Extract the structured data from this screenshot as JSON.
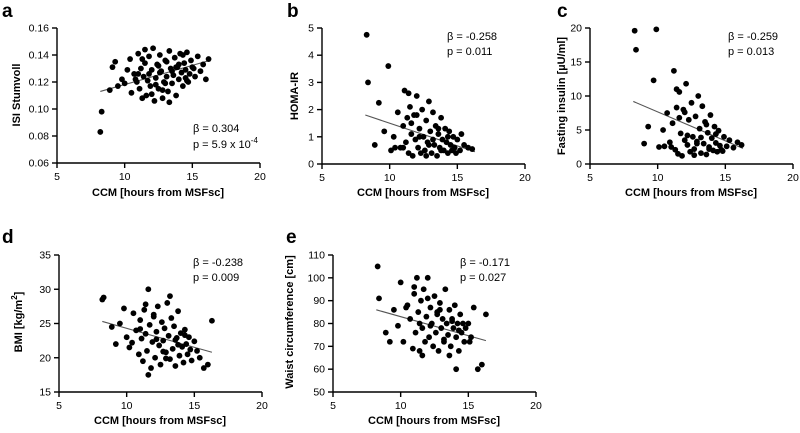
{
  "chart_data": [
    {
      "id": "a",
      "type": "scatter",
      "panel_letter": "a",
      "xlabel": "CCM [hours from MSFsc]",
      "ylabel": "ISI Stumvoll",
      "xlim": [
        5,
        20
      ],
      "ylim": [
        0.06,
        0.16
      ],
      "xticks": [
        5,
        10,
        15,
        20
      ],
      "xtick_labels": [
        "5",
        "10",
        "15",
        "20"
      ],
      "yticks": [
        0.06,
        0.08,
        0.1,
        0.12,
        0.14,
        0.16
      ],
      "ytick_labels": [
        "0.06",
        "0.08",
        "0.10",
        "0.12",
        "0.14",
        "0.16"
      ],
      "annotation_lines": [
        "β = 0.304",
        "p = 5.9 x 10"
      ],
      "annotation_superscript": "-4",
      "annotation_position": "bottom-right",
      "fit": {
        "x": [
          8.2,
          16.3
        ],
        "y": [
          0.113,
          0.136
        ]
      },
      "x": [
        8.2,
        8.3,
        8.9,
        9.1,
        9.3,
        9.5,
        9.8,
        10.0,
        10.2,
        10.4,
        10.5,
        10.7,
        10.9,
        11.0,
        11.1,
        11.2,
        11.3,
        11.4,
        11.5,
        11.6,
        11.7,
        11.8,
        11.9,
        12.0,
        12.1,
        12.2,
        12.3,
        12.4,
        12.5,
        12.6,
        12.7,
        12.8,
        12.9,
        13.0,
        13.1,
        13.2,
        13.3,
        13.4,
        13.5,
        13.6,
        13.7,
        13.8,
        13.9,
        14.0,
        14.1,
        14.2,
        14.3,
        14.4,
        14.5,
        14.6,
        14.7,
        14.8,
        14.9,
        15.0,
        15.2,
        15.4,
        15.6,
        15.8,
        16.0,
        16.2,
        11.0,
        11.5,
        12.0,
        12.5,
        13.0,
        13.5,
        14.0,
        14.5,
        11.3,
        12.3,
        13.3,
        14.3,
        11.8,
        12.8,
        13.8,
        10.8,
        12.6,
        13.1,
        14.6,
        15.1
      ],
      "y": [
        0.083,
        0.098,
        0.114,
        0.131,
        0.135,
        0.117,
        0.122,
        0.119,
        0.129,
        0.137,
        0.112,
        0.126,
        0.12,
        0.141,
        0.115,
        0.13,
        0.108,
        0.124,
        0.134,
        0.11,
        0.121,
        0.139,
        0.117,
        0.129,
        0.145,
        0.106,
        0.123,
        0.133,
        0.115,
        0.14,
        0.128,
        0.108,
        0.12,
        0.136,
        0.124,
        0.113,
        0.143,
        0.13,
        0.119,
        0.125,
        0.138,
        0.11,
        0.131,
        0.122,
        0.141,
        0.127,
        0.117,
        0.134,
        0.129,
        0.142,
        0.12,
        0.126,
        0.136,
        0.131,
        0.124,
        0.139,
        0.128,
        0.133,
        0.122,
        0.137,
        0.126,
        0.144,
        0.111,
        0.132,
        0.119,
        0.128,
        0.133,
        0.123,
        0.137,
        0.118,
        0.105,
        0.14,
        0.126,
        0.114,
        0.131,
        0.122,
        0.127,
        0.135,
        0.121,
        0.13
      ]
    },
    {
      "id": "b",
      "type": "scatter",
      "panel_letter": "b",
      "xlabel": "CCM [hours from MSFsc]",
      "ylabel": "HOMA-IR",
      "xlim": [
        5,
        20
      ],
      "ylim": [
        0,
        5
      ],
      "xticks": [
        5,
        10,
        15,
        20
      ],
      "xtick_labels": [
        "5",
        "10",
        "15",
        "20"
      ],
      "yticks": [
        0,
        1,
        2,
        3,
        4,
        5
      ],
      "ytick_labels": [
        "0",
        "1",
        "2",
        "3",
        "4",
        "5"
      ],
      "annotation_lines": [
        "β = -0.258",
        "p = 0.011"
      ],
      "annotation_superscript": "",
      "annotation_position": "top-right",
      "fit": {
        "x": [
          8.2,
          16.3
        ],
        "y": [
          1.8,
          0.45
        ]
      },
      "x": [
        8.3,
        8.4,
        8.9,
        9.2,
        9.6,
        9.9,
        10.1,
        10.3,
        10.6,
        10.8,
        11.0,
        11.1,
        11.2,
        11.3,
        11.4,
        11.5,
        11.6,
        11.7,
        11.8,
        11.9,
        12.0,
        12.1,
        12.2,
        12.3,
        12.4,
        12.5,
        12.6,
        12.7,
        12.8,
        12.9,
        13.0,
        13.1,
        13.2,
        13.3,
        13.4,
        13.5,
        13.6,
        13.7,
        13.8,
        13.9,
        14.0,
        14.1,
        14.2,
        14.3,
        14.4,
        14.5,
        14.6,
        14.7,
        14.8,
        15.0,
        15.2,
        15.5,
        15.8,
        16.1,
        11.0,
        11.6,
        12.2,
        12.7,
        13.2,
        13.8,
        14.3,
        12.0,
        12.9,
        13.6,
        11.4,
        14.9,
        10.4,
        15.3
      ],
      "y": [
        4.75,
        3.0,
        0.7,
        2.25,
        1.2,
        3.6,
        0.5,
        1.0,
        1.9,
        0.6,
        1.4,
        2.7,
        0.8,
        1.7,
        0.4,
        2.1,
        1.1,
        0.3,
        1.8,
        0.9,
        2.5,
        0.6,
        1.3,
        0.4,
        2.0,
        1.0,
        0.5,
        1.6,
        0.8,
        2.3,
        1.2,
        0.4,
        1.9,
        0.7,
        1.4,
        0.3,
        1.1,
        0.6,
        1.7,
        0.9,
        0.5,
        1.3,
        0.8,
        0.4,
        1.2,
        0.7,
        0.5,
        1.0,
        0.6,
        0.9,
        0.5,
        0.7,
        0.6,
        0.55,
        0.6,
        1.5,
        1.0,
        0.3,
        0.9,
        0.5,
        1.0,
        1.8,
        0.7,
        1.3,
        2.6,
        0.4,
        0.6,
        1.1
      ]
    },
    {
      "id": "c",
      "type": "scatter",
      "panel_letter": "c",
      "xlabel": "CCM [hours from MSFsc]",
      "ylabel": "Fasting insulin [µU/ml]",
      "xlim": [
        5,
        20
      ],
      "ylim": [
        0,
        20
      ],
      "xticks": [
        5,
        10,
        15,
        20
      ],
      "xtick_labels": [
        "5",
        "10",
        "15",
        "20"
      ],
      "yticks": [
        0,
        5,
        10,
        15,
        20
      ],
      "ytick_labels": [
        "0",
        "5",
        "10",
        "15",
        "20"
      ],
      "annotation_lines": [
        "β = -0.259",
        "p = 0.013"
      ],
      "annotation_superscript": "",
      "annotation_position": "top-right",
      "fit": {
        "x": [
          8.2,
          16.3
        ],
        "y": [
          9.2,
          2.3
        ]
      },
      "x": [
        8.3,
        8.4,
        9.0,
        9.3,
        9.7,
        9.9,
        10.1,
        10.4,
        10.7,
        10.9,
        11.1,
        11.2,
        11.3,
        11.4,
        11.5,
        11.6,
        11.7,
        11.8,
        11.9,
        12.0,
        12.1,
        12.2,
        12.3,
        12.4,
        12.5,
        12.6,
        12.7,
        12.8,
        12.9,
        13.0,
        13.1,
        13.2,
        13.3,
        13.4,
        13.5,
        13.6,
        13.7,
        13.8,
        13.9,
        14.0,
        14.1,
        14.2,
        14.3,
        14.4,
        14.5,
        14.6,
        14.7,
        14.9,
        15.1,
        15.3,
        15.6,
        15.9,
        16.2,
        11.0,
        11.6,
        12.2,
        12.7,
        13.2,
        13.8,
        14.3,
        12.0,
        12.9,
        13.6,
        11.4,
        10.5,
        14.8
      ],
      "y": [
        19.6,
        16.8,
        3.0,
        5.5,
        12.3,
        19.8,
        2.5,
        5.0,
        7.5,
        3.2,
        6.0,
        13.7,
        2.1,
        8.3,
        1.5,
        10.6,
        4.5,
        1.2,
        8.0,
        3.5,
        11.8,
        2.8,
        6.5,
        1.8,
        9.0,
        4.0,
        2.2,
        7.0,
        3.3,
        10.0,
        5.2,
        1.6,
        8.5,
        3.0,
        6.2,
        1.4,
        4.6,
        2.5,
        7.2,
        3.8,
        2.0,
        5.5,
        3.1,
        1.8,
        4.9,
        2.7,
        2.1,
        4.0,
        2.6,
        3.5,
        2.4,
        3.2,
        2.8,
        2.5,
        6.8,
        4.2,
        1.3,
        3.9,
        2.2,
        4.4,
        7.6,
        3.0,
        5.8,
        11.0,
        2.6,
        1.9
      ]
    },
    {
      "id": "d",
      "type": "scatter",
      "panel_letter": "d",
      "xlabel": "CCM [hours from MSFsc]",
      "ylabel": "BMI [kg/m",
      "ylabel_superscript": "2",
      "ylabel_suffix": "]",
      "xlim": [
        5,
        20
      ],
      "ylim": [
        15,
        35
      ],
      "xticks": [
        5,
        10,
        15,
        20
      ],
      "xtick_labels": [
        "5",
        "10",
        "15",
        "20"
      ],
      "yticks": [
        15,
        20,
        25,
        30,
        35
      ],
      "ytick_labels": [
        "15",
        "20",
        "25",
        "30",
        "35"
      ],
      "annotation_lines": [
        "β = -0.238",
        "p = 0.009"
      ],
      "annotation_superscript": "",
      "annotation_position": "top-right",
      "fit": {
        "x": [
          8.2,
          16.3
        ],
        "y": [
          25.3,
          20.8
        ]
      },
      "x": [
        8.2,
        8.3,
        8.9,
        9.2,
        9.5,
        9.8,
        10.0,
        10.2,
        10.5,
        10.7,
        10.9,
        11.0,
        11.1,
        11.2,
        11.3,
        11.4,
        11.5,
        11.6,
        11.7,
        11.8,
        11.9,
        12.0,
        12.1,
        12.2,
        12.3,
        12.4,
        12.5,
        12.6,
        12.7,
        12.8,
        12.9,
        13.0,
        13.1,
        13.2,
        13.3,
        13.4,
        13.5,
        13.6,
        13.7,
        13.8,
        13.9,
        14.0,
        14.1,
        14.2,
        14.3,
        14.4,
        14.5,
        14.6,
        14.7,
        14.8,
        15.0,
        15.2,
        15.4,
        15.7,
        16.0,
        16.3,
        11.0,
        11.6,
        12.2,
        12.7,
        13.2,
        13.8,
        14.3,
        12.0,
        12.9,
        13.6,
        11.4,
        10.4
      ],
      "y": [
        28.5,
        28.8,
        24.5,
        22.0,
        25.0,
        27.2,
        23.0,
        21.5,
        26.5,
        24.0,
        20.5,
        25.5,
        22.8,
        19.5,
        27.0,
        23.5,
        21.0,
        30.0,
        24.8,
        18.5,
        22.3,
        26.0,
        20.0,
        23.8,
        27.5,
        21.8,
        19.0,
        25.2,
        22.5,
        24.3,
        20.8,
        28.0,
        23.2,
        19.8,
        25.8,
        21.3,
        24.6,
        18.8,
        22.9,
        26.8,
        20.3,
        23.6,
        21.6,
        19.3,
        24.1,
        22.0,
        20.5,
        23.0,
        21.2,
        19.6,
        22.4,
        21.0,
        20.0,
        18.5,
        19.0,
        25.4,
        24.2,
        17.5,
        22.7,
        20.9,
        29.0,
        21.9,
        23.3,
        26.3,
        19.9,
        22.6,
        27.8,
        22.2
      ]
    },
    {
      "id": "e",
      "type": "scatter",
      "panel_letter": "e",
      "xlabel": "CCM [hours from MSFsc]",
      "ylabel": "Waist circumference [cm]",
      "xlim": [
        5,
        20
      ],
      "ylim": [
        50,
        110
      ],
      "xticks": [
        5,
        10,
        15,
        20
      ],
      "xtick_labels": [
        "5",
        "10",
        "15",
        "20"
      ],
      "yticks": [
        50,
        60,
        70,
        80,
        90,
        100,
        110
      ],
      "ytick_labels": [
        "50",
        "60",
        "70",
        "80",
        "90",
        "100",
        "110"
      ],
      "annotation_lines": [
        "β = -0.171",
        "p = 0.027"
      ],
      "annotation_superscript": "",
      "annotation_position": "top-right",
      "fit": {
        "x": [
          8.2,
          16.3
        ],
        "y": [
          86.0,
          72.5
        ]
      },
      "x": [
        8.3,
        8.4,
        8.9,
        9.2,
        9.5,
        9.8,
        10.0,
        10.2,
        10.5,
        10.7,
        10.9,
        11.0,
        11.1,
        11.2,
        11.3,
        11.4,
        11.5,
        11.6,
        11.7,
        11.8,
        11.9,
        12.0,
        12.1,
        12.2,
        12.3,
        12.4,
        12.5,
        12.6,
        12.7,
        12.8,
        12.9,
        13.0,
        13.1,
        13.2,
        13.3,
        13.4,
        13.5,
        13.6,
        13.7,
        13.8,
        13.9,
        14.0,
        14.1,
        14.2,
        14.3,
        14.4,
        14.5,
        14.6,
        14.7,
        14.8,
        15.0,
        15.2,
        15.4,
        15.7,
        16.0,
        16.3,
        11.0,
        11.6,
        12.2,
        12.7,
        13.2,
        13.8,
        14.3,
        12.0,
        12.9,
        13.6,
        11.4,
        10.4,
        14.1,
        15.1
      ],
      "y": [
        105,
        91,
        76,
        72,
        86,
        79,
        98,
        72,
        88,
        82,
        69,
        93,
        76,
        100,
        85,
        68,
        90,
        78,
        95,
        72,
        83,
        100,
        74,
        87,
        80,
        70,
        92,
        76,
        84,
        68,
        89,
        78,
        82,
        72,
        95,
        80,
        75,
        86,
        70,
        82,
        78,
        88,
        74,
        80,
        68,
        84,
        76,
        80,
        72,
        78,
        80,
        74,
        87,
        60,
        62,
        84,
        96,
        66,
        79,
        85,
        73,
        81,
        77,
        91,
        86,
        66,
        80,
        87,
        60,
        72
      ]
    }
  ]
}
